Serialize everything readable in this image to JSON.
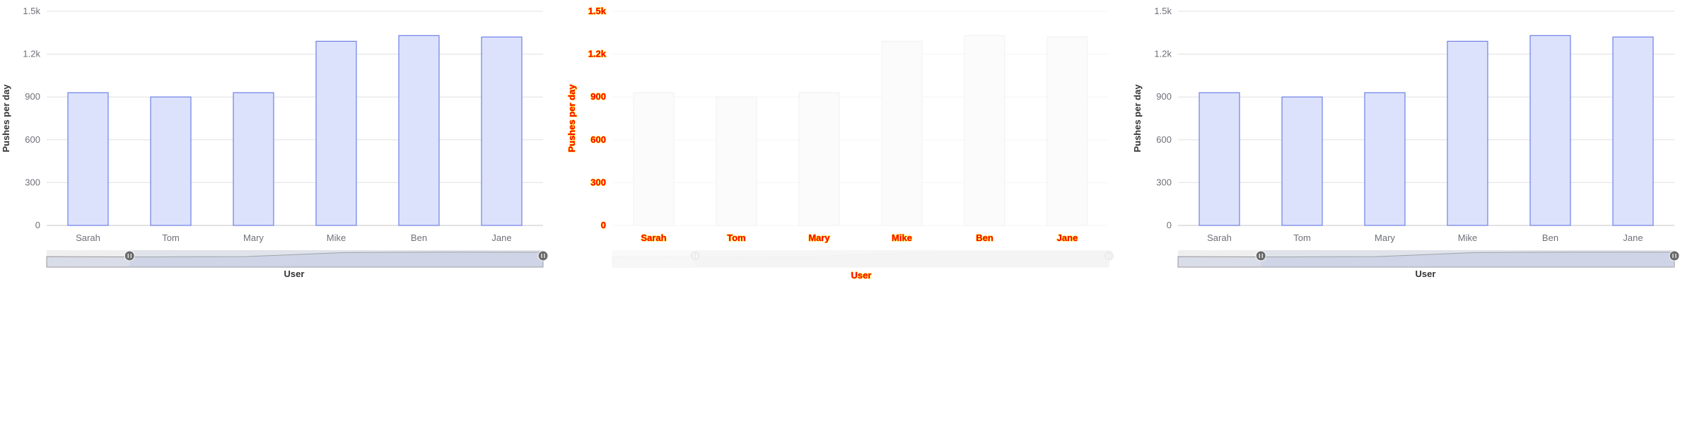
{
  "chart_data": [
    {
      "type": "bar",
      "variant": "normal",
      "categories": [
        "Sarah",
        "Tom",
        "Mary",
        "Mike",
        "Ben",
        "Jane"
      ],
      "values": [
        930,
        900,
        930,
        1290,
        1330,
        1320
      ],
      "ylabel": "Pushes per day",
      "xlabel": "User",
      "ylim": [
        0,
        1500
      ],
      "yticks": [
        0,
        300,
        600,
        900,
        1200,
        1500
      ],
      "ytick_labels": [
        "0",
        "300",
        "600",
        "900",
        "1.2k",
        "1.5k"
      ],
      "grid": true,
      "data_zoom": {
        "range_start": 0.167,
        "range_end": 1.0
      },
      "colors": {
        "bar_fill": "#dce2fb",
        "bar_stroke": "#6d7fe8",
        "grid": "#e0e0e0",
        "slider_bg": "#efefef"
      }
    },
    {
      "type": "bar",
      "variant": "ghost",
      "categories": [
        "Sarah",
        "Tom",
        "Mary",
        "Mike",
        "Ben",
        "Jane"
      ],
      "values": [
        930,
        900,
        930,
        1290,
        1330,
        1320
      ],
      "ylabel": "Pushes per day",
      "xlabel": "User",
      "ylim": [
        0,
        1500
      ],
      "yticks": [
        0,
        300,
        600,
        900,
        1200,
        1500
      ],
      "ytick_labels": [
        "0",
        "300",
        "600",
        "900",
        "1.2k",
        "1.5k"
      ],
      "grid": true,
      "data_zoom": {
        "range_start": 0.167,
        "range_end": 1.0
      },
      "colors": {
        "bar_fill": "#fbfbfb",
        "bar_stroke": "#f2f2f2",
        "text": "#ff0000",
        "text_outline": "#ffd200"
      }
    },
    {
      "type": "bar",
      "variant": "normal",
      "categories": [
        "Sarah",
        "Tom",
        "Mary",
        "Mike",
        "Ben",
        "Jane"
      ],
      "values": [
        930,
        900,
        930,
        1290,
        1330,
        1320
      ],
      "ylabel": "Pushes per day",
      "xlabel": "User",
      "ylim": [
        0,
        1500
      ],
      "yticks": [
        0,
        300,
        600,
        900,
        1200,
        1500
      ],
      "ytick_labels": [
        "0",
        "300",
        "600",
        "900",
        "1.2k",
        "1.5k"
      ],
      "grid": true,
      "data_zoom": {
        "range_start": 0.167,
        "range_end": 1.0
      },
      "colors": {
        "bar_fill": "#dce2fb",
        "bar_stroke": "#6d7fe8",
        "grid": "#e0e0e0",
        "slider_bg": "#efefef"
      }
    }
  ]
}
